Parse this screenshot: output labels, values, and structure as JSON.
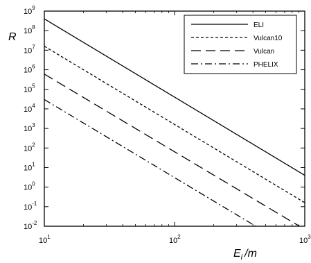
{
  "chart_data": {
    "type": "line",
    "title": "",
    "xlabel": "E",
    "xlabel_sub": "i",
    "xlabel_suffix": "/m",
    "ylabel": "R",
    "xscale": "log",
    "yscale": "log",
    "xlim": [
      10,
      1000
    ],
    "ylim": [
      0.01,
      1000000000
    ],
    "grid": false,
    "legend_position": "top-right",
    "x_tick_labels": [
      {
        "base": "10",
        "exp": "1"
      },
      {
        "base": "10",
        "exp": "2"
      },
      {
        "base": "10",
        "exp": "3"
      }
    ],
    "y_tick_labels": [
      {
        "base": "10",
        "exp": "-2"
      },
      {
        "base": "10",
        "exp": "-1"
      },
      {
        "base": "10",
        "exp": "0"
      },
      {
        "base": "10",
        "exp": "1"
      },
      {
        "base": "10",
        "exp": "2"
      },
      {
        "base": "10",
        "exp": "3"
      },
      {
        "base": "10",
        "exp": "4"
      },
      {
        "base": "10",
        "exp": "5"
      },
      {
        "base": "10",
        "exp": "6"
      },
      {
        "base": "10",
        "exp": "7"
      },
      {
        "base": "10",
        "exp": "8"
      },
      {
        "base": "10",
        "exp": "9"
      }
    ],
    "series": [
      {
        "name": "ELI",
        "style": "solid",
        "x": [
          10,
          1000
        ],
        "y": [
          400000000,
          4
        ]
      },
      {
        "name": "Vulcan10",
        "style": "short-dash",
        "x": [
          10,
          1000
        ],
        "y": [
          16000000,
          0.16
        ]
      },
      {
        "name": "Vulcan",
        "style": "long-dash",
        "x": [
          10,
          910
        ],
        "y": [
          600000,
          0.01
        ]
      },
      {
        "name": "PHELIX",
        "style": "dash-dot",
        "x": [
          10,
          420
        ],
        "y": [
          30000,
          0.01
        ]
      }
    ],
    "color": "#000000"
  }
}
